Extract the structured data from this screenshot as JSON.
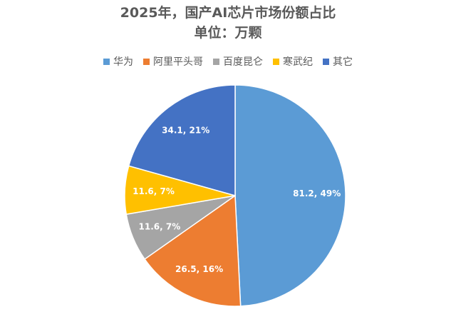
{
  "chart_data": {
    "type": "pie",
    "title": "2025年，国产AI芯片市场份额占比",
    "subtitle": "单位：万颗",
    "legend_position": "top",
    "categories": [
      "华为",
      "阿里平头哥",
      "百度昆仑",
      "寒武纪",
      "其它"
    ],
    "values": [
      81.2,
      26.5,
      11.6,
      11.6,
      34.1
    ],
    "percentages": [
      49,
      16,
      7,
      7,
      21
    ],
    "data_labels": [
      "81.2, 49%",
      "26.5, 16%",
      "11.6, 7%",
      "11.6, 7%",
      "34.1, 21%"
    ],
    "colors": [
      "#5B9BD5",
      "#ED7D31",
      "#A5A5A5",
      "#FFC000",
      "#4472C4"
    ]
  }
}
